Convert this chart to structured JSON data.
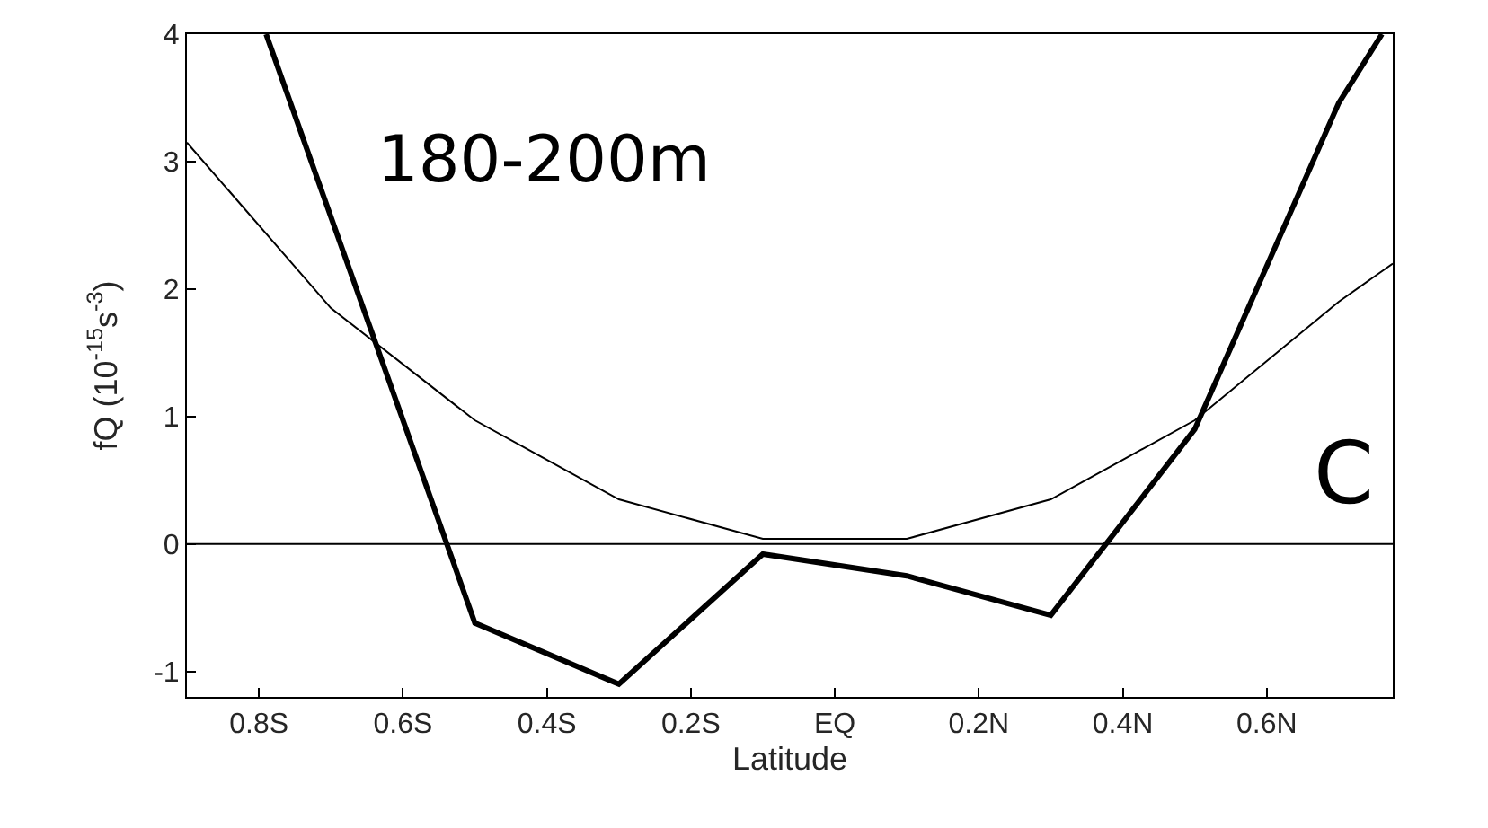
{
  "chart_data": {
    "type": "line",
    "xlabel": "Latitude",
    "ylabel": "fQ (10$^{-15}$s$^{-3}$)",
    "series": [
      {
        "color": "#000000",
        "x": [
          -0.79,
          -0.5,
          -0.3,
          -0.1,
          0.1,
          0.3,
          0.5,
          0.7,
          0.76
        ],
        "values": [
          4,
          -0.62,
          -1.1,
          -0.08,
          -0.25,
          -0.56,
          0.9,
          3.46,
          4
        ]
      },
      {
        "color": "#000000",
        "x": [
          -0.9,
          -0.7,
          -0.5,
          -0.3,
          -0.1,
          0.1,
          0.3,
          0.5,
          0.7,
          0.775
        ],
        "values": [
          3.15,
          1.85,
          0.97,
          0.35,
          0.04,
          0.04,
          0.35,
          0.97,
          1.9,
          2.2
        ]
      }
    ],
    "xlim": [
      -0.9,
      0.775
    ],
    "xticks": [
      {
        "value": -0.8,
        "label": "0.8S"
      },
      {
        "value": -0.6,
        "label": "0.6S"
      },
      {
        "value": -0.4,
        "label": "0.4S"
      },
      {
        "value": -0.2,
        "label": "0.2S"
      },
      {
        "value": 0,
        "label": "EQ"
      },
      {
        "value": 0.2,
        "label": "0.2N"
      },
      {
        "value": 0.4,
        "label": "0.4N"
      },
      {
        "value": 0.6,
        "label": "0.6N"
      }
    ],
    "ylim": [
      -1.2,
      4
    ],
    "yticks": [
      -1,
      0,
      1,
      2,
      3,
      4
    ],
    "ref_lines": [
      {
        "axis": "y",
        "value": 0,
        "color": "#000000"
      }
    ],
    "annotations": [
      "180-200m",
      "C"
    ],
    "marker": "none",
    "line_style": "solid"
  }
}
